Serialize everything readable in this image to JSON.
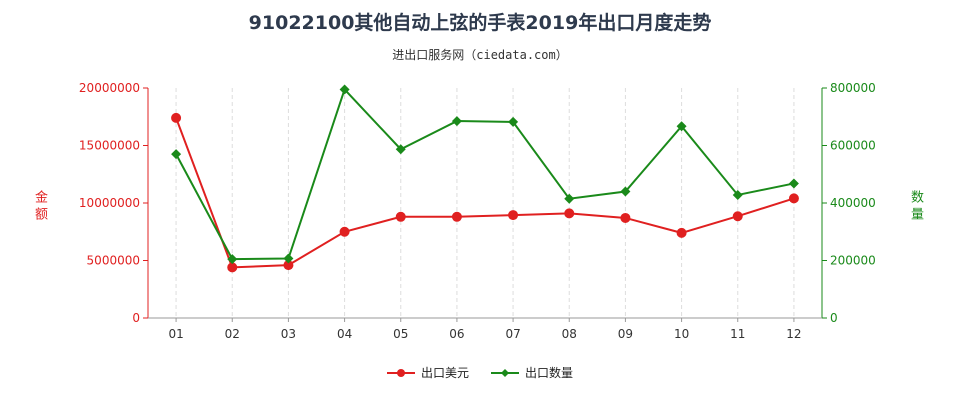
{
  "chart_data": {
    "type": "line",
    "title": "91022100其他自动上弦的手表2019年出口月度走势",
    "subtitle": "进出口服务网（ciedata.com）",
    "categories": [
      "01",
      "02",
      "03",
      "04",
      "05",
      "06",
      "07",
      "08",
      "09",
      "10",
      "11",
      "12"
    ],
    "y_left": {
      "label": "金额",
      "ylim": [
        0,
        20000000
      ],
      "ticks": [
        "0",
        "5000000",
        "10000000",
        "15000000",
        "20000000"
      ],
      "tick_values": [
        0,
        5000000,
        10000000,
        15000000,
        20000000
      ],
      "color": "#e02020"
    },
    "y_right": {
      "label": "数量",
      "ylim": [
        0,
        800000
      ],
      "ticks": [
        "0",
        "200000",
        "400000",
        "600000",
        "800000"
      ],
      "tick_values": [
        0,
        200000,
        400000,
        600000,
        800000
      ],
      "color": "#1a8a1a"
    },
    "series": [
      {
        "name": "出口美元",
        "axis": "left",
        "color": "#e02020",
        "marker": "circle",
        "values": [
          17400000,
          4400000,
          4600000,
          7500000,
          8800000,
          8800000,
          8950000,
          9100000,
          8700000,
          7400000,
          8850000,
          10400000
        ]
      },
      {
        "name": "出口数量",
        "axis": "right",
        "color": "#1a8a1a",
        "marker": "diamond",
        "values": [
          570000,
          205000,
          207000,
          795000,
          587000,
          685000,
          682000,
          415000,
          440000,
          667000,
          428000,
          468000
        ]
      }
    ],
    "grid": "vertical",
    "legend_position": "bottom-center"
  }
}
